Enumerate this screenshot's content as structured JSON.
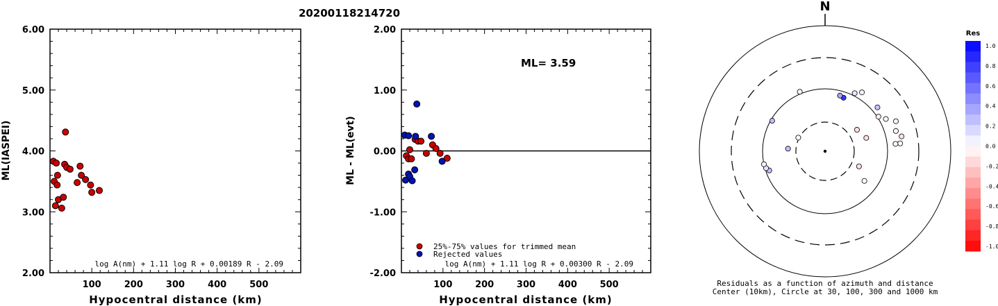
{
  "page_title": "20200118214720",
  "colors": {
    "used": "#cc0000",
    "rejected": "#0014b4"
  },
  "chart_data": [
    {
      "type": "scatter",
      "ylabel": "ML(IASPEI)",
      "xlabel": "Hypocentral distance (km)",
      "xlim": [
        0,
        600
      ],
      "ylim": [
        2.0,
        6.0
      ],
      "x_ticks": [
        100,
        200,
        300,
        400,
        500
      ],
      "y_ticks": [
        "2.00",
        "3.00",
        "4.00",
        "5.00",
        "6.00"
      ],
      "formula": "log A(nm) + 1.11 log R + 0.00189 R - 2.09",
      "points": [
        [
          8,
          3.83
        ],
        [
          10,
          3.5
        ],
        [
          13,
          3.1
        ],
        [
          15,
          3.8
        ],
        [
          17,
          3.44
        ],
        [
          18,
          3.6
        ],
        [
          20,
          3.2
        ],
        [
          28,
          3.06
        ],
        [
          32,
          3.24
        ],
        [
          35,
          3.78
        ],
        [
          37,
          4.31
        ],
        [
          40,
          3.73
        ],
        [
          48,
          3.7
        ],
        [
          65,
          3.48
        ],
        [
          72,
          3.75
        ],
        [
          75,
          3.6
        ],
        [
          85,
          3.53
        ],
        [
          97,
          3.44
        ],
        [
          100,
          3.32
        ],
        [
          118,
          3.35
        ]
      ]
    },
    {
      "type": "scatter",
      "ylabel": "ML - ML(evt)",
      "xlabel": "Hypocentral distance (km)",
      "xlim": [
        0,
        600
      ],
      "ylim": [
        -2.0,
        2.0
      ],
      "x_ticks": [
        100,
        200,
        300,
        400,
        500
      ],
      "y_ticks": [
        "-2.00",
        "-1.00",
        "0.00",
        "1.00",
        "2.00"
      ],
      "annotation": "ML= 3.59",
      "formula": "log A(nm) + 1.11 log R + 0.00300 R - 2.09",
      "legend": [
        {
          "label": "25%-75% values for trimmed mean",
          "color": "#cc0000"
        },
        {
          "label": "Rejected values",
          "color": "#0014b4"
        }
      ],
      "series": [
        {
          "name": "25%-75% values for trimmed mean",
          "color": "#cc0000",
          "points": [
            [
              12,
              -0.08
            ],
            [
              17,
              -0.13
            ],
            [
              20,
              0.02
            ],
            [
              24,
              -0.13
            ],
            [
              33,
              0.19
            ],
            [
              40,
              0.16
            ],
            [
              47,
              0.16
            ],
            [
              60,
              -0.04
            ],
            [
              75,
              0.1
            ],
            [
              83,
              0.04
            ],
            [
              93,
              -0.04
            ],
            [
              110,
              -0.12
            ]
          ]
        },
        {
          "name": "Rejected values",
          "color": "#0014b4",
          "points": [
            [
              8,
              0.26
            ],
            [
              10,
              -0.48
            ],
            [
              17,
              0.25
            ],
            [
              17,
              -0.38
            ],
            [
              20,
              -0.42
            ],
            [
              26,
              -0.49
            ],
            [
              32,
              -0.31
            ],
            [
              34,
              0.24
            ],
            [
              37,
              0.77
            ],
            [
              72,
              0.24
            ],
            [
              98,
              -0.17
            ]
          ]
        }
      ]
    },
    {
      "type": "polar_scatter",
      "north_label": "N",
      "caption_line1": "Residuals as a function of azimuth and distance",
      "caption_line2": "Center (10km), Circle at 30, 100, 300 and 1000 km",
      "colorbar_title": "Res",
      "colorbar_ticks": [
        "1.0",
        "0.8",
        "0.6",
        "0.4",
        "0.2",
        "0.0",
        "-0.2",
        "-0.4",
        "-0.6",
        "-0.8",
        "-1.0"
      ],
      "points": [
        {
          "azimuth": 300,
          "distance_km": 95,
          "residual": 0.26
        },
        {
          "azimuth": 251,
          "distance_km": 88,
          "residual": 0.25
        },
        {
          "azimuth": 254,
          "distance_km": 96,
          "residual": 0.1
        },
        {
          "azimuth": 258,
          "distance_km": 100,
          "residual": 0.05
        },
        {
          "azimuth": 274,
          "distance_km": 40,
          "residual": 0.24
        },
        {
          "azimuth": 297,
          "distance_km": 31,
          "residual": 0.0
        },
        {
          "azimuth": 337,
          "distance_km": 108,
          "residual": 0.05
        },
        {
          "azimuth": 19,
          "distance_km": 81,
          "residual": 0.77
        },
        {
          "azimuth": 15,
          "distance_km": 84,
          "residual": 0.35
        },
        {
          "azimuth": 27,
          "distance_km": 110,
          "residual": 0.1
        },
        {
          "azimuth": 32,
          "distance_km": 128,
          "residual": 0.05
        },
        {
          "azimuth": 50,
          "distance_km": 123,
          "residual": 0.24
        },
        {
          "azimuth": 62,
          "distance_km": 125,
          "residual": 0.04
        },
        {
          "azimuth": 67,
          "distance_km": 166,
          "residual": 0.04
        },
        {
          "azimuth": 74,
          "distance_km": 148,
          "residual": -0.04
        },
        {
          "azimuth": 79,
          "distance_km": 172,
          "residual": -0.12
        },
        {
          "azimuth": 84,
          "distance_km": 158,
          "residual": 0.02
        },
        {
          "azimuth": 84,
          "distance_km": 134,
          "residual": -0.04
        },
        {
          "azimuth": 56,
          "distance_km": 42,
          "residual": -0.13
        },
        {
          "azimuth": 72,
          "distance_km": 50,
          "residual": -0.13
        },
        {
          "azimuth": 57,
          "distance_km": 104,
          "residual": -0.08
        },
        {
          "azimuth": 114,
          "distance_km": 40,
          "residual": -0.13
        },
        {
          "azimuth": 127,
          "distance_km": 62,
          "residual": 0.02
        }
      ]
    }
  ]
}
